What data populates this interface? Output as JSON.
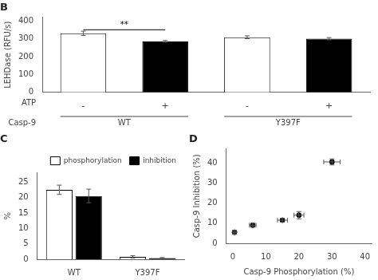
{
  "chart_data": [
    {
      "type": "bar",
      "title": "B",
      "ylabel": "LEHDase (RFU/s)",
      "categories": [
        "-",
        "+",
        "-",
        "+"
      ],
      "category_row_label": "ATP",
      "groups": [
        "WT",
        "Y397F"
      ],
      "group_row_label": "Casp-9",
      "values": [
        330,
        285,
        308,
        300
      ],
      "errors": [
        12,
        5,
        8,
        6
      ],
      "colors": [
        "white",
        "black",
        "white",
        "black"
      ],
      "ylim": [
        0,
        420
      ],
      "yticks": [
        0,
        100,
        200,
        300,
        400
      ],
      "grid": false,
      "annotations": [
        {
          "text": "**",
          "from": 0,
          "to": 1,
          "y": 350
        }
      ]
    },
    {
      "type": "bar",
      "title": "C",
      "ylabel": "%",
      "categories": [
        "WT",
        "Y397F"
      ],
      "series": [
        {
          "name": "phosphorylation",
          "color": "white",
          "values": [
            22.5,
            0.8
          ],
          "errors": [
            1.5,
            0.35
          ]
        },
        {
          "name": "inhibition",
          "color": "black",
          "values": [
            20.5,
            0.4
          ],
          "errors": [
            2.2,
            0.15
          ]
        }
      ],
      "ylim": [
        0,
        28
      ],
      "yticks": [
        0,
        5,
        10,
        15,
        20,
        25
      ],
      "grid": false,
      "legend": "upper right"
    },
    {
      "type": "scatter",
      "title": "D",
      "xlabel": "Casp-9 Phosphorylation (%)",
      "ylabel": "Casp-9 Inhibition (%)",
      "x": [
        0.5,
        6.0,
        15.0,
        20.0,
        30.0
      ],
      "values": [
        5.5,
        9.0,
        11.5,
        14.0,
        40.5
      ],
      "xerr": [
        0.5,
        1.0,
        1.5,
        1.5,
        2.5
      ],
      "yerr": [
        1.0,
        1.0,
        1.0,
        1.8,
        1.5
      ],
      "color": "black",
      "marker": "circle",
      "xlim": [
        -2,
        42
      ],
      "ylim": [
        0,
        47
      ],
      "xticks": [
        0,
        10,
        20,
        30,
        40
      ],
      "yticks": [
        0,
        10,
        20,
        30,
        40
      ],
      "grid": false
    }
  ]
}
